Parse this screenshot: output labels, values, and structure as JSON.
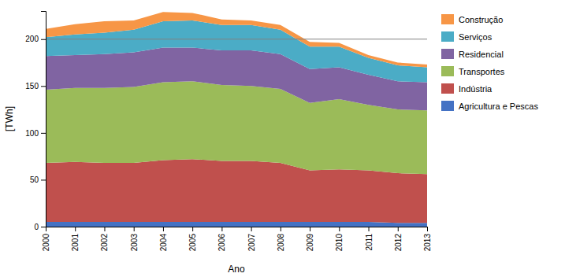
{
  "chart_data": {
    "type": "area",
    "stacked": true,
    "x": [
      2000,
      2001,
      2002,
      2003,
      2004,
      2005,
      2006,
      2007,
      2008,
      2009,
      2010,
      2011,
      2012,
      2013
    ],
    "series": [
      {
        "name": "Agricultura e Pescas",
        "color": "#4472C4",
        "values": [
          5,
          5,
          5,
          5,
          5,
          5,
          5,
          5,
          5,
          5,
          5,
          5,
          4,
          4
        ]
      },
      {
        "name": "Indústria",
        "color": "#C0504D",
        "values": [
          63,
          64,
          63,
          63,
          66,
          67,
          65,
          65,
          63,
          55,
          56,
          55,
          53,
          52
        ]
      },
      {
        "name": "Transportes",
        "color": "#9BBB59",
        "values": [
          78,
          79,
          80,
          81,
          83,
          83,
          81,
          80,
          79,
          72,
          75,
          70,
          68,
          68
        ]
      },
      {
        "name": "Residencial",
        "color": "#8064A2",
        "values": [
          36,
          35,
          36,
          37,
          37,
          36,
          37,
          38,
          37,
          36,
          34,
          32,
          30,
          30
        ]
      },
      {
        "name": "Serviços",
        "color": "#4BACC6",
        "values": [
          20,
          22,
          23,
          24,
          28,
          29,
          27,
          27,
          26,
          24,
          22,
          18,
          17,
          16
        ]
      },
      {
        "name": "Construção",
        "color": "#F79646",
        "values": [
          9,
          11,
          12,
          10,
          10,
          8,
          6,
          5,
          5,
          5,
          4,
          3,
          3,
          3
        ]
      }
    ],
    "xlabel": "Ano",
    "ylabel": "[TWh]",
    "xlim": [
      2000,
      2013
    ],
    "xticks": [
      2000,
      2001,
      2002,
      2003,
      2004,
      2005,
      2006,
      2007,
      2008,
      2009,
      2010,
      2011,
      2012,
      2013
    ],
    "ylim": [
      0,
      230
    ],
    "yticks": [
      0,
      50,
      100,
      150,
      200
    ],
    "hline": 200,
    "grid": false,
    "legend": "right"
  }
}
